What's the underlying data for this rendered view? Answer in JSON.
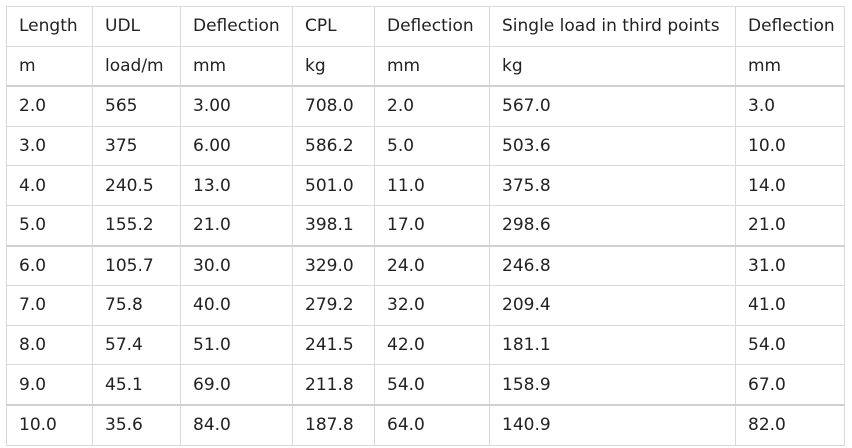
{
  "table": {
    "headers": [
      "Length",
      "UDL",
      "Deflection",
      "CPL",
      "Deflection",
      "Single load in third points",
      "Deflection"
    ],
    "units": [
      "m",
      "load/m",
      "mm",
      "kg",
      "mm",
      "kg",
      "mm"
    ],
    "rows": [
      [
        "2.0",
        "565",
        "3.00",
        "708.0",
        "2.0",
        "567.0",
        "3.0"
      ],
      [
        "3.0",
        "375",
        "6.00",
        "586.2",
        "5.0",
        "503.6",
        "10.0"
      ],
      [
        "4.0",
        "240.5",
        "13.0",
        "501.0",
        "11.0",
        "375.8",
        "14.0"
      ],
      [
        "5.0",
        "155.2",
        "21.0",
        "398.1",
        "17.0",
        "298.6",
        "21.0"
      ],
      [
        "6.0",
        "105.7",
        "30.0",
        "329.0",
        "24.0",
        "246.8",
        "31.0"
      ],
      [
        "7.0",
        "75.8",
        "40.0",
        "279.2",
        "32.0",
        "209.4",
        "41.0"
      ],
      [
        "8.0",
        "57.4",
        "51.0",
        "241.5",
        "42.0",
        "181.1",
        "54.0"
      ],
      [
        "9.0",
        "45.1",
        "69.0",
        "211.8",
        "54.0",
        "158.9",
        "67.0"
      ],
      [
        "10.0",
        "35.6",
        "84.0",
        "187.8",
        "64.0",
        "140.9",
        "82.0"
      ]
    ]
  }
}
